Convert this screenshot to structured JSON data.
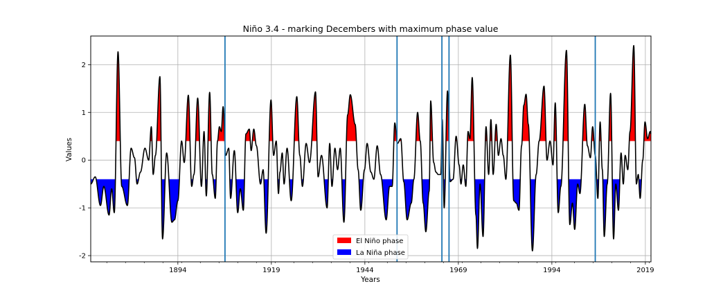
{
  "chart_data": {
    "type": "area",
    "title": "Niño 3.4 - marking Decembers with maximum phase value",
    "xlabel": "Years",
    "ylabel": "Values",
    "xlim": [
      1870.7,
      2020.5
    ],
    "ylim": [
      -2.13,
      2.6
    ],
    "xticks": [
      1894,
      1919,
      1944,
      1969,
      1994,
      2019
    ],
    "yticks": [
      -2,
      -1,
      0,
      1,
      2
    ],
    "grid": true,
    "legend_position": "lower center",
    "el_nino_threshold": 0.4,
    "la_nina_threshold": -0.4,
    "colors": {
      "el_nino": "#ff0000",
      "la_nina": "#0000ff",
      "line": "#000000",
      "vline": "#1f77b4",
      "grid": "#b0b0b0"
    },
    "series": [
      {
        "name": "El Niño phase",
        "color": "#ff0000"
      },
      {
        "name": "La Niña phase",
        "color": "#0000ff"
      }
    ],
    "december_markers": [
      1906.6,
      1952.6,
      1964.6,
      1966.5,
      2005.6
    ],
    "peaks": [
      [
        1870.7,
        -0.5
      ],
      [
        1871.9,
        -0.35
      ],
      [
        1873.3,
        -0.95
      ],
      [
        1874.2,
        -0.55
      ],
      [
        1875.6,
        -1.15
      ],
      [
        1876.3,
        -0.6
      ],
      [
        1877.0,
        -1.1
      ],
      [
        1878.0,
        2.27
      ],
      [
        1879.0,
        -0.55
      ],
      [
        1880.5,
        -0.95
      ],
      [
        1881.5,
        0.25
      ],
      [
        1882.4,
        0.05
      ],
      [
        1883.1,
        -0.5
      ],
      [
        1884.0,
        -0.25
      ],
      [
        1885.2,
        0.25
      ],
      [
        1886.2,
        0.0
      ],
      [
        1886.9,
        0.7
      ],
      [
        1887.4,
        -0.3
      ],
      [
        1888.0,
        0.1
      ],
      [
        1889.2,
        1.75
      ],
      [
        1889.9,
        -1.65
      ],
      [
        1891.0,
        0.15
      ],
      [
        1892.4,
        -1.3
      ],
      [
        1893.1,
        -1.25
      ],
      [
        1894.0,
        -0.85
      ],
      [
        1895.0,
        0.4
      ],
      [
        1895.7,
        -0.05
      ],
      [
        1896.8,
        1.36
      ],
      [
        1897.7,
        -0.55
      ],
      [
        1898.3,
        -0.3
      ],
      [
        1899.3,
        1.3
      ],
      [
        1900.3,
        -0.55
      ],
      [
        1901.0,
        0.6
      ],
      [
        1901.6,
        -0.75
      ],
      [
        1902.5,
        1.42
      ],
      [
        1903.2,
        -0.3
      ],
      [
        1904.0,
        -0.8
      ],
      [
        1904.6,
        0.4
      ],
      [
        1905.1,
        0.7
      ],
      [
        1905.6,
        0.6
      ],
      [
        1906.1,
        1.12
      ],
      [
        1906.8,
        0.1
      ],
      [
        1907.6,
        0.25
      ],
      [
        1908.1,
        -0.8
      ],
      [
        1909.1,
        0.2
      ],
      [
        1910.0,
        -1.1
      ],
      [
        1910.7,
        -0.6
      ],
      [
        1911.5,
        -1.05
      ],
      [
        1912.2,
        0.55
      ],
      [
        1913.1,
        0.65
      ],
      [
        1913.6,
        0.2
      ],
      [
        1914.3,
        0.65
      ],
      [
        1915.0,
        0.3
      ],
      [
        1916.1,
        -0.5
      ],
      [
        1916.8,
        -0.2
      ],
      [
        1917.6,
        -1.53
      ],
      [
        1918.9,
        1.26
      ],
      [
        1919.6,
        0.1
      ],
      [
        1920.3,
        0.4
      ],
      [
        1920.9,
        -0.7
      ],
      [
        1921.3,
        -0.25
      ],
      [
        1921.9,
        0.15
      ],
      [
        1922.4,
        -0.5
      ],
      [
        1923.2,
        0.25
      ],
      [
        1924.3,
        -0.85
      ],
      [
        1925.8,
        1.33
      ],
      [
        1926.6,
        0.1
      ],
      [
        1927.3,
        -0.55
      ],
      [
        1928.3,
        0.35
      ],
      [
        1929.2,
        -0.05
      ],
      [
        1930.8,
        1.43
      ],
      [
        1931.5,
        -0.35
      ],
      [
        1932.4,
        0.1
      ],
      [
        1933.9,
        -1.0
      ],
      [
        1934.6,
        0.35
      ],
      [
        1935.2,
        -0.55
      ],
      [
        1936.0,
        0.25
      ],
      [
        1936.7,
        -0.2
      ],
      [
        1937.4,
        0.25
      ],
      [
        1938.4,
        -1.3
      ],
      [
        1939.4,
        0.95
      ],
      [
        1940.1,
        1.37
      ],
      [
        1941.4,
        0.75
      ],
      [
        1942.2,
        -0.2
      ],
      [
        1942.9,
        -1.05
      ],
      [
        1943.9,
        -0.2
      ],
      [
        1944.6,
        0.35
      ],
      [
        1945.6,
        -0.25
      ],
      [
        1946.4,
        -0.4
      ],
      [
        1947.3,
        0.3
      ],
      [
        1948.2,
        -0.3
      ],
      [
        1949.7,
        -1.25
      ],
      [
        1950.6,
        -0.55
      ],
      [
        1951.3,
        -0.55
      ],
      [
        1952.0,
        0.78
      ],
      [
        1952.7,
        0.35
      ],
      [
        1953.6,
        0.45
      ],
      [
        1954.4,
        -0.45
      ],
      [
        1955.3,
        -1.25
      ],
      [
        1956.4,
        -0.9
      ],
      [
        1957.1,
        -0.4
      ],
      [
        1958.1,
        1.0
      ],
      [
        1958.8,
        0.4
      ],
      [
        1959.6,
        -0.9
      ],
      [
        1960.3,
        -1.5
      ],
      [
        1961.2,
        -0.65
      ],
      [
        1961.6,
        1.24
      ],
      [
        1962.4,
        -0.05
      ],
      [
        1963.0,
        -0.25
      ],
      [
        1963.6,
        -0.3
      ],
      [
        1964.3,
        -0.3
      ],
      [
        1964.7,
        0.85
      ],
      [
        1965.2,
        -1.0
      ],
      [
        1966.1,
        1.45
      ],
      [
        1966.8,
        -0.45
      ],
      [
        1967.6,
        -0.4
      ],
      [
        1968.4,
        0.5
      ],
      [
        1969.2,
        -0.1
      ],
      [
        1969.7,
        -0.5
      ],
      [
        1970.3,
        -0.1
      ],
      [
        1971.0,
        -0.55
      ],
      [
        1971.6,
        0.6
      ],
      [
        1972.1,
        0.45
      ],
      [
        1972.7,
        1.73
      ],
      [
        1973.7,
        -1.15
      ],
      [
        1974.1,
        -1.85
      ],
      [
        1974.8,
        -0.5
      ],
      [
        1975.6,
        -1.6
      ],
      [
        1976.4,
        0.7
      ],
      [
        1977.1,
        -0.3
      ],
      [
        1977.7,
        0.85
      ],
      [
        1978.3,
        -0.3
      ],
      [
        1979.1,
        0.75
      ],
      [
        1979.7,
        0.1
      ],
      [
        1980.4,
        0.45
      ],
      [
        1981.0,
        0.1
      ],
      [
        1981.7,
        -0.4
      ],
      [
        1982.9,
        2.2
      ],
      [
        1983.8,
        -0.85
      ],
      [
        1984.5,
        -0.9
      ],
      [
        1985.2,
        -1.05
      ],
      [
        1985.9,
        0.3
      ],
      [
        1986.5,
        1.15
      ],
      [
        1987.1,
        1.38
      ],
      [
        1987.7,
        0.75
      ],
      [
        1988.8,
        -1.9
      ],
      [
        1989.8,
        -0.3
      ],
      [
        1990.6,
        0.4
      ],
      [
        1991.9,
        1.55
      ],
      [
        1992.7,
        0.0
      ],
      [
        1993.5,
        0.4
      ],
      [
        1994.3,
        -0.1
      ],
      [
        1994.9,
        1.2
      ],
      [
        1995.7,
        -1.1
      ],
      [
        1996.4,
        -0.55
      ],
      [
        1997.9,
        2.3
      ],
      [
        1998.8,
        -1.35
      ],
      [
        1999.5,
        -0.9
      ],
      [
        2000.1,
        -1.45
      ],
      [
        2000.9,
        -0.5
      ],
      [
        2001.5,
        -0.7
      ],
      [
        2002.8,
        1.17
      ],
      [
        2003.5,
        0.3
      ],
      [
        2004.3,
        0.05
      ],
      [
        2004.9,
        0.7
      ],
      [
        2005.6,
        0.1
      ],
      [
        2006.3,
        -0.8
      ],
      [
        2006.9,
        0.8
      ],
      [
        2007.5,
        -0.2
      ],
      [
        2008.0,
        -1.6
      ],
      [
        2008.8,
        -0.5
      ],
      [
        2009.7,
        1.4
      ],
      [
        2010.5,
        -1.65
      ],
      [
        2011.1,
        -0.5
      ],
      [
        2011.8,
        -1.05
      ],
      [
        2012.5,
        0.15
      ],
      [
        2013.1,
        -0.5
      ],
      [
        2013.6,
        0.1
      ],
      [
        2014.3,
        -0.2
      ],
      [
        2014.9,
        0.6
      ],
      [
        2015.9,
        2.4
      ],
      [
        2016.6,
        -0.5
      ],
      [
        2017.1,
        -0.3
      ],
      [
        2017.6,
        -0.8
      ],
      [
        2018.3,
        0.0
      ],
      [
        2018.9,
        0.8
      ],
      [
        2019.6,
        0.45
      ],
      [
        2020.3,
        0.6
      ],
      [
        2020.5,
        0.55
      ]
    ]
  }
}
